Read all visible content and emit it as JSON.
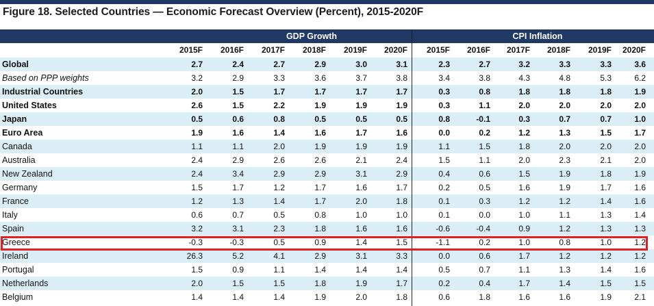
{
  "title": "Figure 18. Selected Countries — Economic Forecast Overview (Percent), 2015-2020F",
  "header": {
    "gdp_label": "GDP Growth",
    "cpi_label": "CPI Inflation",
    "years": [
      "2015F",
      "2016F",
      "2017F",
      "2018F",
      "2019F",
      "2020F",
      "2015F",
      "2016F",
      "2017F",
      "2018F",
      "2019F",
      "2020F"
    ]
  },
  "rows": [
    {
      "label": "Global",
      "values": [
        "2.7",
        "2.4",
        "2.7",
        "2.9",
        "3.0",
        "3.1",
        "2.3",
        "2.7",
        "3.2",
        "3.3",
        "3.3",
        "3.6"
      ]
    },
    {
      "label": "Based on PPP weights",
      "values": [
        "3.2",
        "2.9",
        "3.3",
        "3.6",
        "3.7",
        "3.8",
        "3.4",
        "3.8",
        "4.3",
        "4.8",
        "5.3",
        "6.2"
      ]
    },
    {
      "label": "Industrial Countries",
      "values": [
        "2.0",
        "1.5",
        "1.7",
        "1.7",
        "1.7",
        "1.7",
        "0.3",
        "0.8",
        "1.8",
        "1.8",
        "1.8",
        "1.9"
      ]
    },
    {
      "label": "United States",
      "values": [
        "2.6",
        "1.5",
        "2.2",
        "1.9",
        "1.9",
        "1.9",
        "0.3",
        "1.1",
        "2.0",
        "2.0",
        "2.0",
        "2.0"
      ]
    },
    {
      "label": "Japan",
      "values": [
        "0.5",
        "0.6",
        "0.8",
        "0.5",
        "0.5",
        "0.5",
        "0.8",
        "-0.1",
        "0.3",
        "0.7",
        "0.7",
        "1.0"
      ]
    },
    {
      "label": "Euro Area",
      "values": [
        "1.9",
        "1.6",
        "1.4",
        "1.6",
        "1.7",
        "1.6",
        "0.0",
        "0.2",
        "1.2",
        "1.3",
        "1.5",
        "1.7"
      ]
    },
    {
      "label": "Canada",
      "values": [
        "1.1",
        "1.1",
        "2.0",
        "1.9",
        "1.9",
        "1.9",
        "1.1",
        "1.5",
        "1.8",
        "2.0",
        "2.0",
        "2.0"
      ]
    },
    {
      "label": "Australia",
      "values": [
        "2.4",
        "2.9",
        "2.6",
        "2.6",
        "2.1",
        "2.4",
        "1.5",
        "1.1",
        "2.0",
        "2.3",
        "2.1",
        "2.0"
      ]
    },
    {
      "label": "New Zealand",
      "values": [
        "2.4",
        "3.4",
        "2.9",
        "2.9",
        "3.1",
        "2.9",
        "0.4",
        "0.6",
        "1.5",
        "1.9",
        "1.8",
        "1.9"
      ]
    },
    {
      "label": "Germany",
      "values": [
        "1.5",
        "1.7",
        "1.2",
        "1.7",
        "1.6",
        "1.7",
        "0.2",
        "0.5",
        "1.6",
        "1.9",
        "1.7",
        "1.6"
      ]
    },
    {
      "label": "France",
      "values": [
        "1.2",
        "1.3",
        "1.4",
        "1.7",
        "2.0",
        "1.8",
        "0.1",
        "0.3",
        "1.2",
        "1.2",
        "1.4",
        "1.6"
      ]
    },
    {
      "label": "Italy",
      "values": [
        "0.6",
        "0.7",
        "0.5",
        "0.8",
        "1.0",
        "1.0",
        "0.1",
        "0.0",
        "1.0",
        "1.1",
        "1.3",
        "1.4"
      ]
    },
    {
      "label": "Spain",
      "values": [
        "3.2",
        "3.1",
        "2.3",
        "1.8",
        "1.6",
        "1.6",
        "-0.6",
        "-0.4",
        "0.9",
        "1.2",
        "1.3",
        "1.3"
      ]
    },
    {
      "label": "Greece",
      "values": [
        "-0.3",
        "-0.3",
        "0.5",
        "0.9",
        "1.4",
        "1.5",
        "-1.1",
        "0.2",
        "1.0",
        "0.8",
        "1.0",
        "1.2"
      ]
    },
    {
      "label": "Ireland",
      "values": [
        "26.3",
        "5.2",
        "4.1",
        "2.9",
        "3.1",
        "3.3",
        "0.0",
        "0.6",
        "1.7",
        "1.2",
        "1.2",
        "1.2"
      ]
    },
    {
      "label": "Portugal",
      "values": [
        "1.5",
        "0.9",
        "1.1",
        "1.4",
        "1.4",
        "1.4",
        "0.5",
        "0.7",
        "1.1",
        "1.3",
        "1.4",
        "1.6"
      ]
    },
    {
      "label": "Netherlands",
      "values": [
        "2.0",
        "1.5",
        "1.5",
        "1.8",
        "1.9",
        "1.7",
        "0.2",
        "0.4",
        "1.7",
        "1.4",
        "1.5",
        "1.5"
      ]
    },
    {
      "label": "Belgium",
      "values": [
        "1.4",
        "1.4",
        "1.4",
        "1.9",
        "2.0",
        "1.8",
        "0.6",
        "1.8",
        "1.6",
        "1.6",
        "1.9",
        "2.1"
      ]
    }
  ],
  "colors": {
    "header_bg": "#1f3864",
    "shade": "#dbeef6",
    "highlight": "#e31e24"
  }
}
